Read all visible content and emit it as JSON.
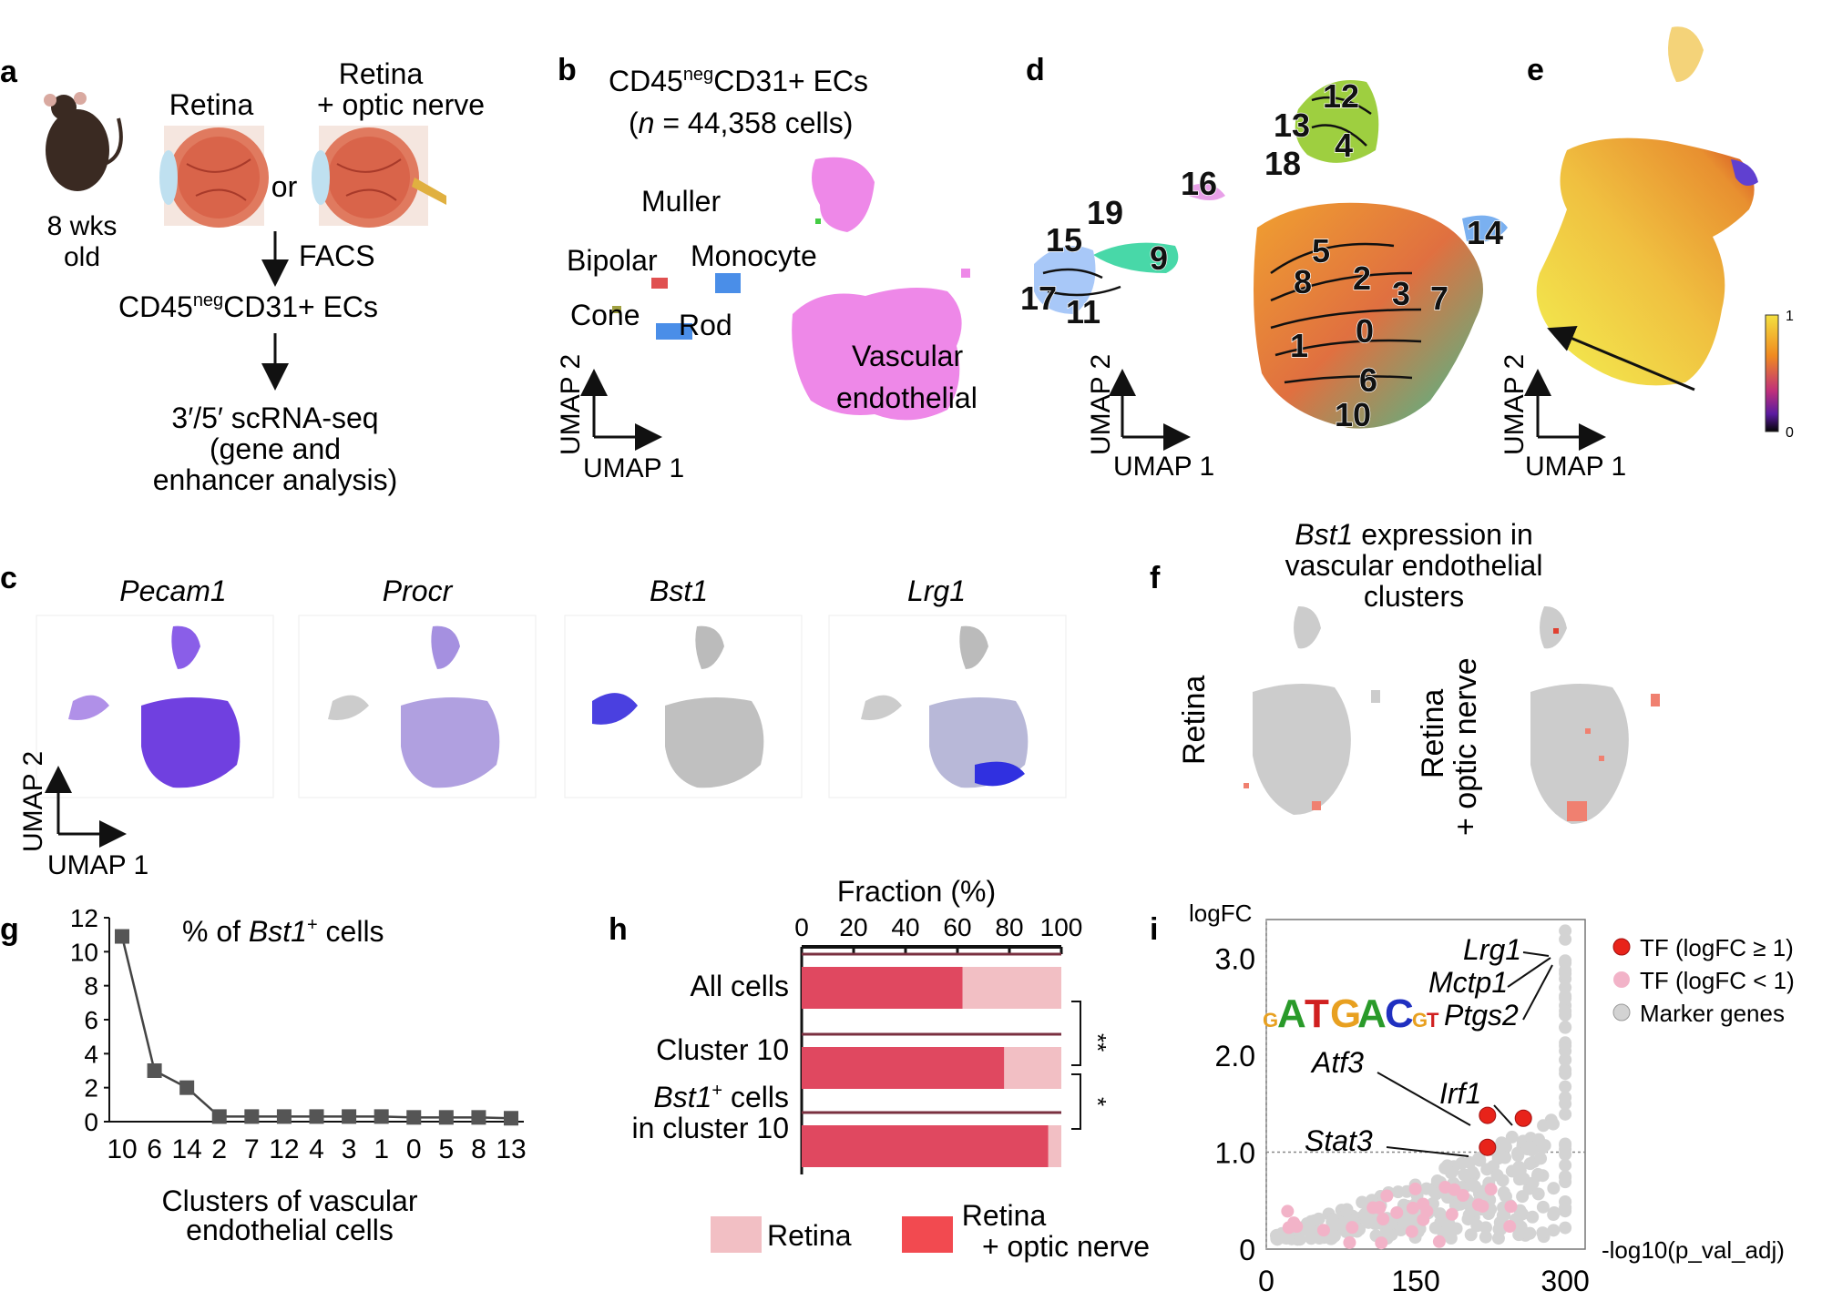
{
  "panels": {
    "a": {
      "letter": "a",
      "mouse_age_line1": "8 wks",
      "mouse_age_line2": "old",
      "retina": "Retina",
      "retina_on_line1": "Retina",
      "retina_on_line2": "+ optic nerve",
      "or": "or",
      "facs": "FACS",
      "ecs_prefix": "CD45",
      "ecs_sup": "neg",
      "ecs_suffix": "CD31+ ECs",
      "seq_line1": "3′/5′ scRNA-seq",
      "seq_line2": "(gene and",
      "seq_line3": "enhancer analysis)"
    },
    "b": {
      "letter": "b",
      "title_prefix": "CD45",
      "title_sup": "neg",
      "title_suffix": "CD31+ ECs",
      "n_italic": "n",
      "n_rest": " = 44,358 cells)",
      "n_open": "(",
      "labels": [
        "Muller",
        "Bipolar",
        "Monocyte",
        "Cone",
        "Rod",
        "Vascular",
        "endothelial"
      ],
      "axis_x": "UMAP 1",
      "axis_y": "UMAP 2"
    },
    "d": {
      "letter": "d",
      "clusters": [
        "12",
        "13",
        "4",
        "18",
        "16",
        "19",
        "15",
        "9",
        "17",
        "11",
        "14",
        "5",
        "8",
        "2",
        "3",
        "7",
        "1",
        "0",
        "6",
        "10"
      ],
      "axis_x": "UMAP 1",
      "axis_y": "UMAP 2"
    },
    "e": {
      "letter": "e",
      "scale_max": "1",
      "scale_min": "0",
      "axis_x": "UMAP 1",
      "axis_y": "UMAP 2"
    },
    "c": {
      "letter": "c",
      "genes": [
        "Pecam1",
        "Procr",
        "Bst1",
        "Lrg1"
      ],
      "axis_x": "UMAP 1",
      "axis_y": "UMAP 2"
    },
    "f": {
      "letter": "f",
      "title_gene": "Bst1",
      "title_rest1": " expression in",
      "title_line2": "vascular endothelial",
      "title_line3": "clusters",
      "left_label": "Retina",
      "right_label_line1": "Retina",
      "right_label_line2": "+ optic nerve"
    },
    "g": {
      "letter": "g",
      "title_prefix": "% of ",
      "title_gene": "Bst1",
      "title_sup": "+",
      "title_suffix": " cells",
      "xlabel_line1": "Clusters of vascular",
      "xlabel_line2": "endothelial cells"
    },
    "h": {
      "letter": "h",
      "axis_title": "Fraction (%)",
      "rows": [
        "All cells",
        "Cluster 10"
      ],
      "row3_gene": "Bst1",
      "row3_sup": "+",
      "row3_rest": " cells",
      "row3_line2": "in cluster 10",
      "sig1": "**",
      "sig2": "*",
      "legend_retina": "Retina",
      "legend_on_line1": "Retina",
      "legend_on_line2": "+ optic nerve",
      "colors": {
        "retina": "#f2bfc4",
        "retina_on": "#e04860"
      }
    },
    "i": {
      "letter": "i",
      "ylabel": "logFC",
      "xlabel": "-log10(p_val_adj)",
      "genes": [
        "Lrg1",
        "Mctp1",
        "Ptgs2",
        "Atf3",
        "Irf1",
        "Stat3"
      ],
      "motif": [
        "G",
        "A",
        "T",
        "G",
        "A",
        "C",
        "G",
        "T"
      ],
      "legend": [
        "TF (logFC ≥ 1)",
        "TF (logFC < 1)",
        "Marker genes"
      ],
      "colors": {
        "tf_high": "#e8231a",
        "tf_low": "#f2b3c8",
        "marker": "#d3d3d3"
      }
    }
  },
  "chart_data": [
    {
      "type": "line",
      "title": "% of Bst1+ cells",
      "xlabel": "Clusters of vascular endothelial cells",
      "ylabel": "",
      "categories": [
        "10",
        "6",
        "14",
        "2",
        "7",
        "12",
        "4",
        "3",
        "1",
        "0",
        "5",
        "8",
        "13"
      ],
      "values": [
        10.9,
        3.0,
        2.0,
        0.3,
        0.3,
        0.3,
        0.3,
        0.3,
        0.3,
        0.25,
        0.25,
        0.25,
        0.2
      ],
      "yticks": [
        "0",
        "2",
        "4",
        "6",
        "8",
        "10",
        "12"
      ],
      "ylim": [
        0,
        12
      ]
    },
    {
      "type": "bar",
      "orientation": "horizontal-stacked",
      "title": "Fraction (%)",
      "categories": [
        "All cells",
        "Cluster 10",
        "Bst1+ cells in cluster 10"
      ],
      "series": [
        {
          "name": "Retina + optic nerve",
          "values": [
            62,
            78,
            95
          ]
        },
        {
          "name": "Retina",
          "values": [
            38,
            22,
            5
          ]
        }
      ],
      "xticks": [
        "0",
        "20",
        "40",
        "60",
        "80",
        "100"
      ],
      "xlim": [
        0,
        100
      ]
    },
    {
      "type": "scatter",
      "xlabel": "-log10(p_val_adj)",
      "ylabel": "logFC",
      "xticks": [
        "0",
        "150",
        "300"
      ],
      "yticks": [
        "0",
        "1.0",
        "2.0",
        "3.0"
      ],
      "xlim": [
        0,
        320
      ],
      "ylim": [
        0,
        3.4
      ],
      "highlighted": [
        {
          "name": "Atf3",
          "x": 222,
          "y": 1.38
        },
        {
          "name": "Irf1",
          "x": 258,
          "y": 1.35
        },
        {
          "name": "Stat3",
          "x": 222,
          "y": 1.05
        }
      ]
    }
  ]
}
